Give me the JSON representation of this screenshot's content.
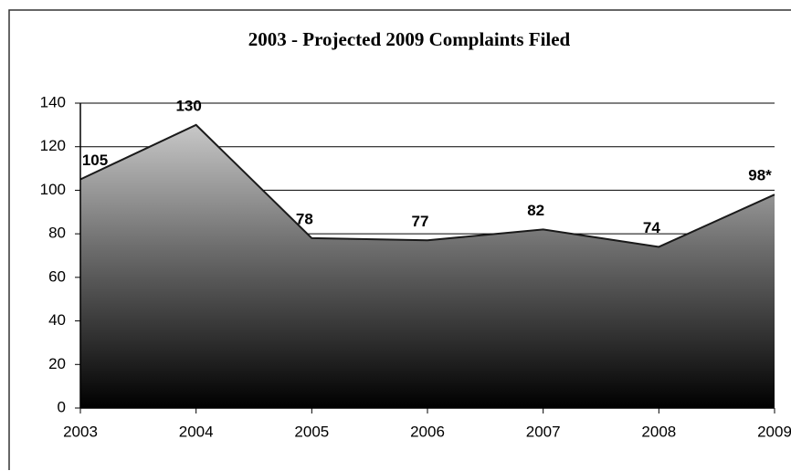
{
  "chart_data": {
    "type": "area",
    "title": "2003 - Projected 2009 Complaints Filed",
    "categories": [
      "2003",
      "2004",
      "2005",
      "2006",
      "2007",
      "2008",
      "2009"
    ],
    "values": [
      105,
      130,
      78,
      77,
      82,
      74,
      98
    ],
    "value_labels": [
      "105",
      "130",
      "78",
      "77",
      "82",
      "74",
      "98*"
    ],
    "color": "#1a1a1a",
    "ylim": [
      0,
      140
    ],
    "yticks": [
      0,
      20,
      40,
      60,
      80,
      100,
      120,
      140
    ],
    "grid": true
  }
}
